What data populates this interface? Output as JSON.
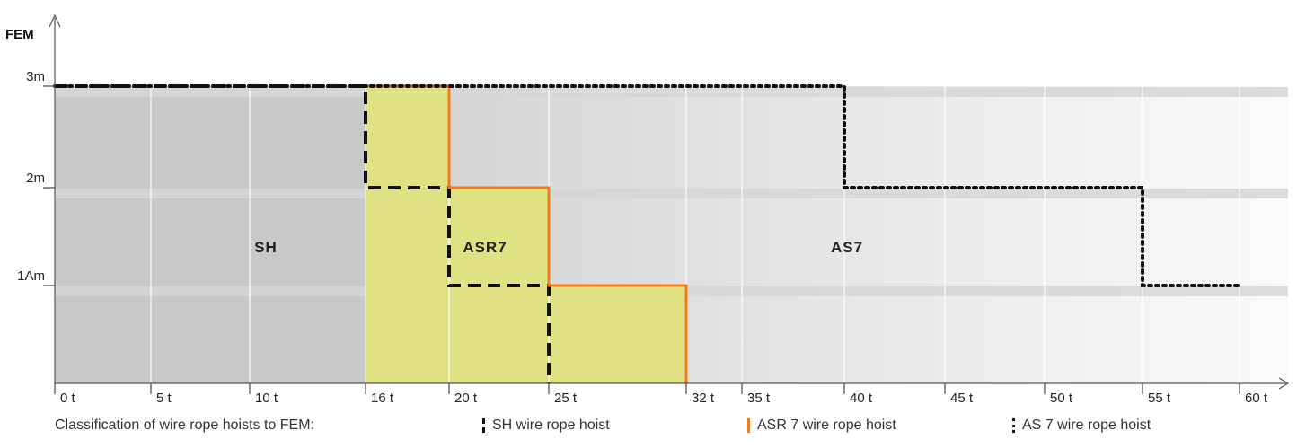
{
  "chart_data": {
    "type": "area",
    "ylabel": "FEM",
    "y_ticks": [
      {
        "label": "1Am",
        "level": 1
      },
      {
        "label": "2m",
        "level": 2
      },
      {
        "label": "3m",
        "level": 3
      }
    ],
    "x_ticks": [
      "0 t",
      "5 t",
      "10 t",
      "16 t",
      "20 t",
      "25 t",
      "32 t",
      "35 t",
      "40 t",
      "45 t",
      "50 t",
      "55 t",
      "60 t"
    ],
    "series": [
      {
        "name": "SH wire rope hoist",
        "style": "dashed",
        "color": "#111111",
        "steps": [
          {
            "from": "0 t",
            "to": "16 t",
            "level": 3
          },
          {
            "from": "16 t",
            "to": "20 t",
            "level": 2
          },
          {
            "from": "20 t",
            "to": "25 t",
            "level": 1
          }
        ]
      },
      {
        "name": "ASR 7 wire rope hoist",
        "style": "solid",
        "color": "#f07d1a",
        "steps": [
          {
            "from": "16 t",
            "to": "20 t",
            "level": 3
          },
          {
            "from": "20 t",
            "to": "25 t",
            "level": 2
          },
          {
            "from": "25 t",
            "to": "32 t",
            "level": 1
          }
        ]
      },
      {
        "name": "AS 7 wire rope hoist",
        "style": "dotted",
        "color": "#111111",
        "steps": [
          {
            "from": "0 t",
            "to": "40 t",
            "level": 3
          },
          {
            "from": "40 t",
            "to": "55 t",
            "level": 2
          },
          {
            "from": "55 t",
            "to": "60 t",
            "level": 1
          }
        ]
      }
    ],
    "regions": [
      {
        "label": "SH",
        "from": "0 t",
        "to": "16 t",
        "color": "#c8c8c8"
      },
      {
        "label": "ASR7",
        "from": "16 t",
        "to": "32 t",
        "color": "#dfe283"
      },
      {
        "label": "AS7",
        "from": "32 t",
        "to": "60 t",
        "color": "#e6e6e6"
      }
    ],
    "grid": true
  },
  "legend": {
    "caption": "Classification of wire rope hoists to FEM:",
    "items": [
      "SH wire rope hoist",
      "ASR 7 wire rope hoist",
      "AS 7 wire rope hoist"
    ]
  },
  "colors": {
    "asr_fill": "#dfe283",
    "asr_line": "#f07d1a",
    "sh_fill": "#c8c8c8",
    "band": "#d6d6d6"
  }
}
